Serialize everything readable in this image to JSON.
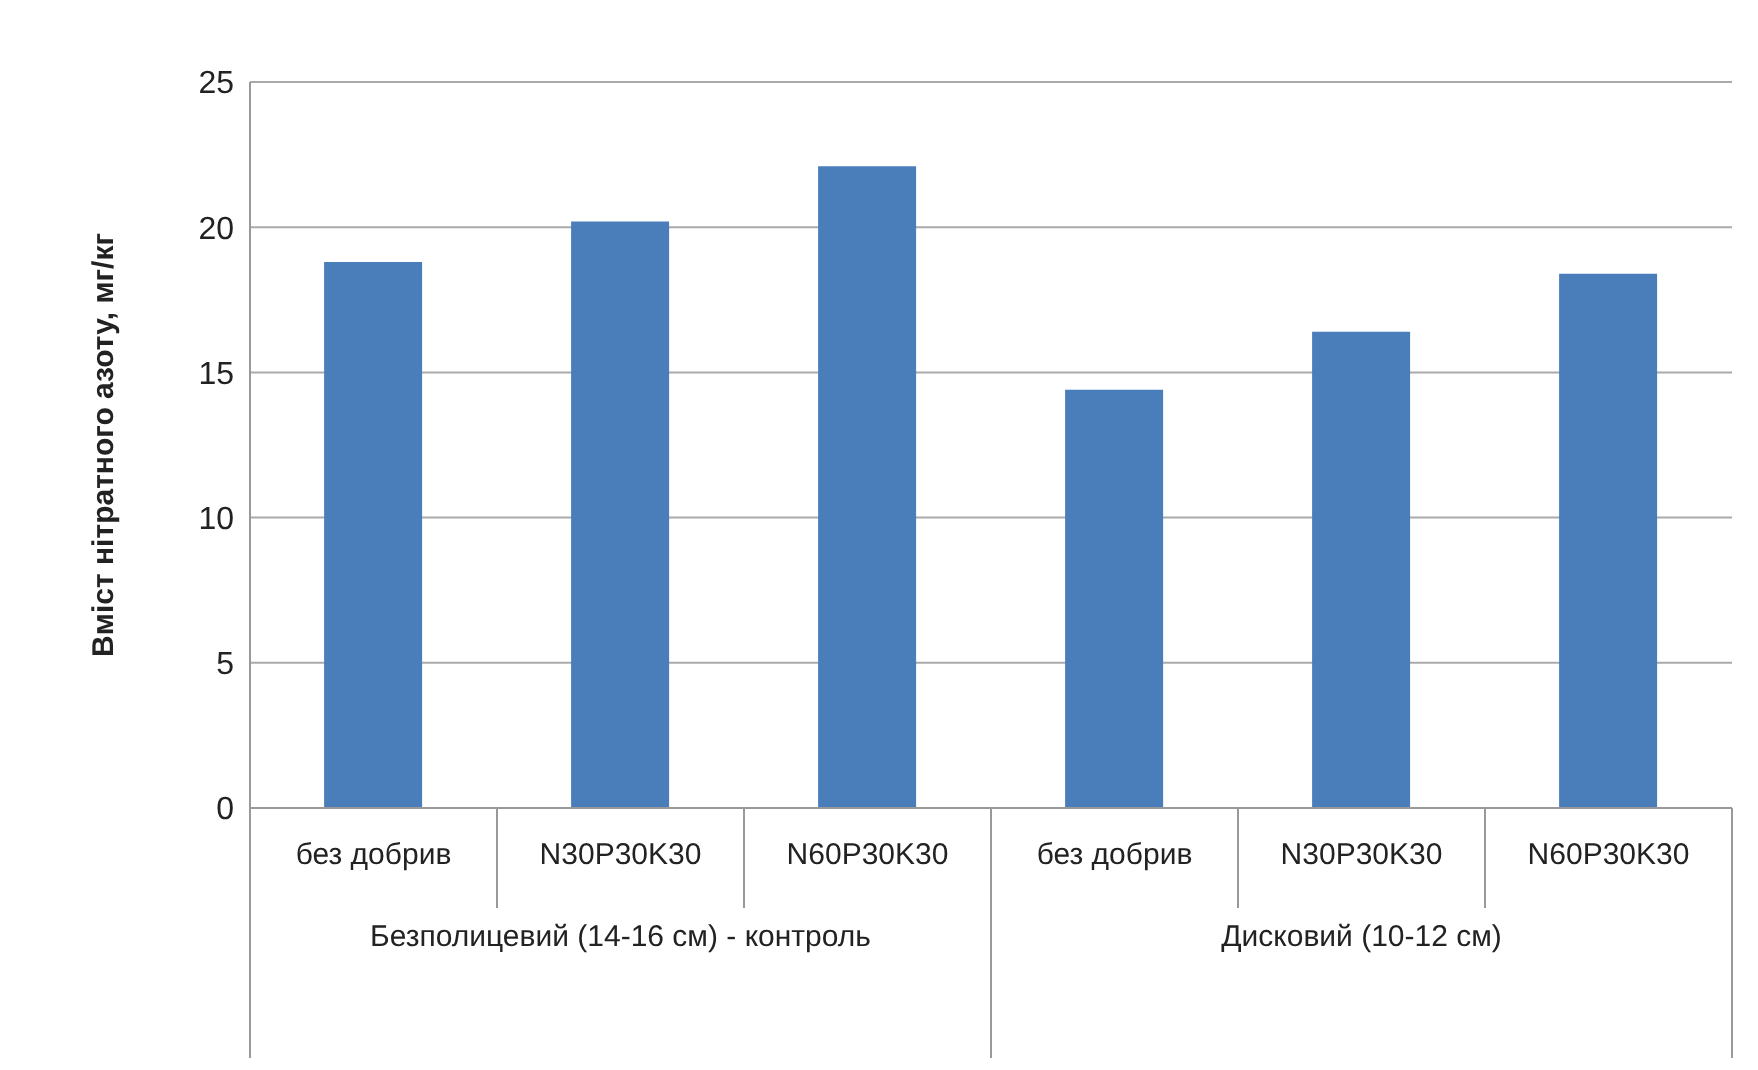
{
  "chart_data": {
    "type": "bar",
    "ylabel": "Вміст нітратного азоту, мг/кг",
    "categories": [
      "без добрив",
      "N30P30K30",
      "N60P30K30",
      "без добрив",
      "N30P30K30",
      "N60P30K30"
    ],
    "values": [
      18.8,
      20.2,
      22.1,
      14.4,
      16.4,
      18.4
    ],
    "color": "#4a7ebb",
    "ylim": [
      0,
      25
    ],
    "yticks": [
      0,
      5,
      10,
      15,
      20,
      25
    ],
    "grid": "y",
    "legend": false,
    "annotations": [
      "Безполицевий (14-16 см) - контроль",
      "Дисковий (10-12 см)"
    ]
  }
}
